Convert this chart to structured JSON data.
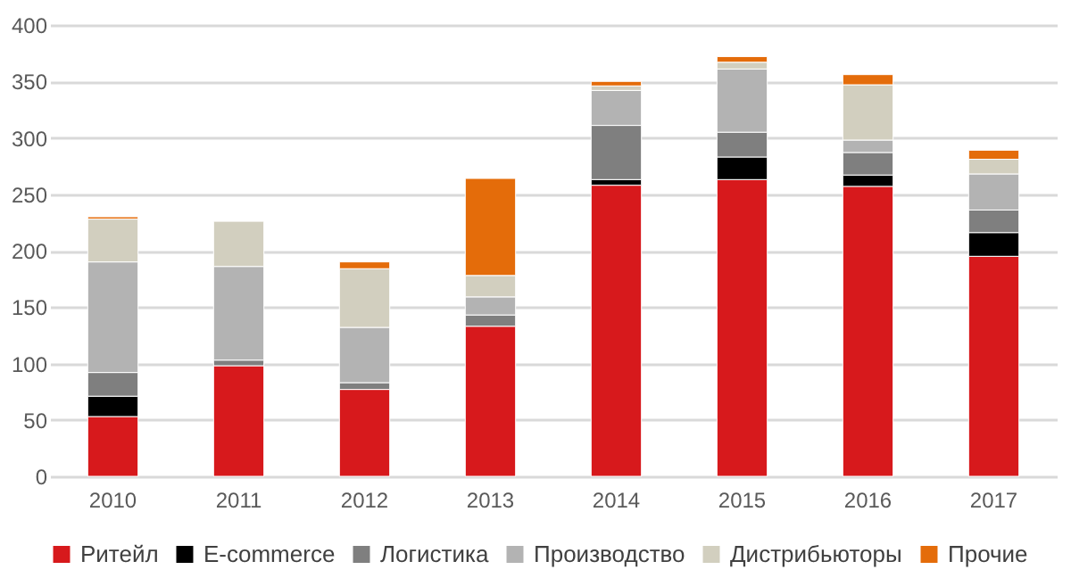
{
  "chart_data": {
    "type": "bar",
    "stacked": true,
    "categories": [
      "2010",
      "2011",
      "2012",
      "2013",
      "2014",
      "2015",
      "2016",
      "2017"
    ],
    "series": [
      {
        "name": "Ритейл",
        "color": "#d7191c",
        "values": [
          53,
          98,
          77,
          133,
          258,
          263,
          257,
          195
        ]
      },
      {
        "name": "E-commerce",
        "color": "#000000",
        "values": [
          18,
          null,
          null,
          null,
          5,
          20,
          10,
          21
        ]
      },
      {
        "name": "Логистика",
        "color": "#7f7f7f",
        "values": [
          21,
          5,
          6,
          10,
          48,
          22,
          20,
          20
        ]
      },
      {
        "name": "Производство",
        "color": "#b3b3b3",
        "values": [
          98,
          83,
          49,
          16,
          31,
          56,
          11,
          32
        ]
      },
      {
        "name": "Дистрибьюторы",
        "color": "#d2cfbf",
        "values": [
          38,
          40,
          52,
          19,
          4,
          6,
          49,
          13
        ]
      },
      {
        "name": "Прочие",
        "color": "#e46c0a",
        "values": [
          2,
          null,
          6,
          86,
          4,
          5,
          9,
          8
        ]
      }
    ],
    "ylim": [
      0,
      400
    ],
    "yticks": [
      0,
      50,
      100,
      150,
      200,
      250,
      300,
      350,
      400
    ],
    "grid": "y",
    "legend": "bottom"
  }
}
